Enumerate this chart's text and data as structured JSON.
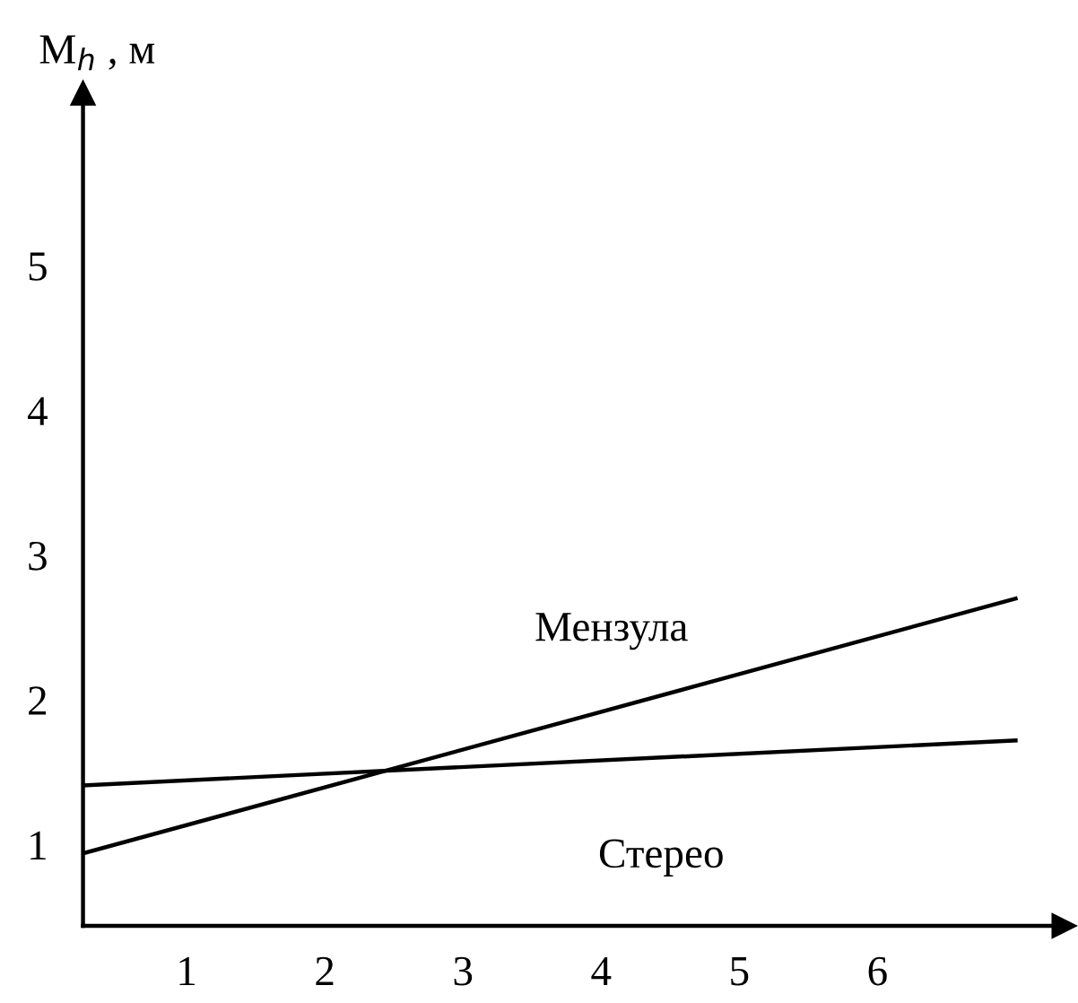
{
  "chart_data": {
    "type": "line",
    "ylabel": "M$_{h}$ , м",
    "x": [
      0.25,
      7.0
    ],
    "series": [
      {
        "name": "Мензула",
        "color": "#000000",
        "values": [
          0.94,
          2.7
        ]
      },
      {
        "name": "Стерео",
        "color": "#000000",
        "values": [
          1.41,
          1.72
        ]
      }
    ],
    "xlim": [
      0.25,
      7.35
    ],
    "ylim": [
      0.44,
      6.19
    ],
    "xticks": [
      1,
      2,
      3,
      4,
      5,
      6
    ],
    "yticks": [
      1,
      2,
      3,
      4,
      5
    ],
    "grid": false,
    "legend": false,
    "marker": "none",
    "line_style": "solid"
  }
}
